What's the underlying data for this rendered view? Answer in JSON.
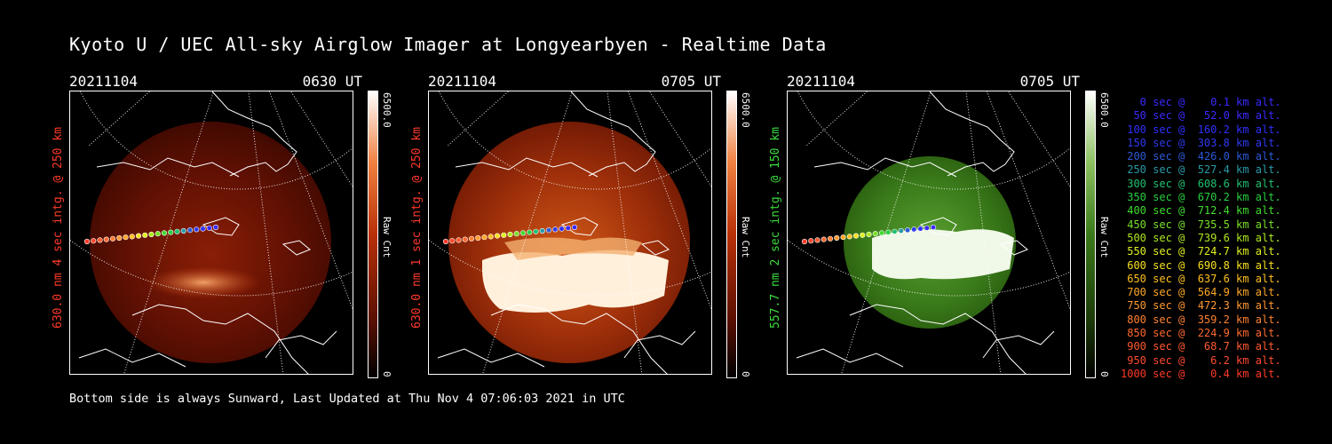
{
  "title": "Kyoto U / UEC All-sky Airglow Imager at Longyearbyen - Realtime Data",
  "panels": [
    {
      "date": "20211104",
      "time": "0630 UT",
      "ylabel": "630.0 nm 4 sec intg. @ 250 km",
      "colorbar_max": "6500.0",
      "colorbar_min": "0",
      "colorbar_unit": "Raw Cnt",
      "color": "#ff3a2a"
    },
    {
      "date": "20211104",
      "time": "0705 UT",
      "ylabel": "630.0 nm 1 sec intg. @ 250 km",
      "colorbar_max": "6500.0",
      "colorbar_min": "0",
      "colorbar_unit": "Raw Cnt",
      "color": "#ff3a2a"
    },
    {
      "date": "20211104",
      "time": "0705 UT",
      "ylabel": "557.7 nm 2 sec intg. @ 150 km",
      "colorbar_max": "6500.0",
      "colorbar_min": "0",
      "colorbar_unit": "Raw Cnt",
      "color": "#3cdc3c"
    }
  ],
  "footer": "Bottom side is always Sunward, Last Updated at Thu Nov  4 07:06:03 2021 in UTC",
  "legend": [
    {
      "text": "   0 sec @    0.1 km alt.",
      "color": "#3a2aff"
    },
    {
      "text": "  50 sec @   52.0 km alt.",
      "color": "#3a2aff"
    },
    {
      "text": " 100 sec @  160.2 km alt.",
      "color": "#3030ff"
    },
    {
      "text": " 150 sec @  303.8 km alt.",
      "color": "#2f3af0"
    },
    {
      "text": " 200 sec @  426.0 km alt.",
      "color": "#2c5ad8"
    },
    {
      "text": " 250 sec @  527.4 km alt.",
      "color": "#2a9aa8"
    },
    {
      "text": " 300 sec @  608.6 km alt.",
      "color": "#20c070"
    },
    {
      "text": " 350 sec @  670.2 km alt.",
      "color": "#28d040"
    },
    {
      "text": " 400 sec @  712.4 km alt.",
      "color": "#40dc30"
    },
    {
      "text": " 450 sec @  735.5 km alt.",
      "color": "#78e028"
    },
    {
      "text": " 500 sec @  739.6 km alt.",
      "color": "#b0e820"
    },
    {
      "text": " 550 sec @  724.7 km alt.",
      "color": "#e0f020"
    },
    {
      "text": " 600 sec @  690.8 km alt.",
      "color": "#f8e020"
    },
    {
      "text": " 650 sec @  637.6 km alt.",
      "color": "#ffc020"
    },
    {
      "text": " 700 sec @  564.9 km alt.",
      "color": "#ffa828"
    },
    {
      "text": " 750 sec @  472.3 km alt.",
      "color": "#ff9830"
    },
    {
      "text": " 800 sec @  359.2 km alt.",
      "color": "#ff8030"
    },
    {
      "text": " 850 sec @  224.9 km alt.",
      "color": "#ff6a30"
    },
    {
      "text": " 900 sec @   68.7 km alt.",
      "color": "#ff5a30"
    },
    {
      "text": " 950 sec @    6.2 km alt.",
      "color": "#ff4a30"
    },
    {
      "text": "1000 sec @    0.4 km alt.",
      "color": "#ff3a2a"
    }
  ],
  "colors": {
    "red_series": "#ff3a2a",
    "green_series": "#3cdc3c"
  }
}
